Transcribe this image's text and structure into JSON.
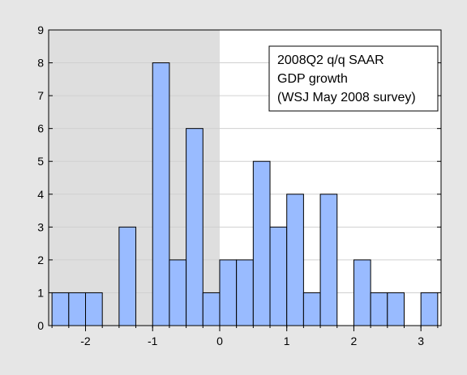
{
  "chart_data": {
    "type": "bar",
    "title": "",
    "xlabel": "",
    "ylabel": "",
    "xlim": [
      -2.55,
      3.3
    ],
    "ylim": [
      0,
      9
    ],
    "bin_width": 0.25,
    "shaded_region": [
      -2.55,
      0
    ],
    "x_ticks": [
      -2,
      -1,
      0,
      1,
      2,
      3
    ],
    "x_tick_labels": [
      "-2",
      "-1",
      "0",
      "1",
      "2",
      "3"
    ],
    "y_ticks": [
      0,
      1,
      2,
      3,
      4,
      5,
      6,
      7,
      8,
      9
    ],
    "y_tick_labels": [
      "0",
      "1",
      "2",
      "3",
      "4",
      "5",
      "6",
      "7",
      "8",
      "9"
    ],
    "bins": [
      {
        "x0": -2.5,
        "x1": -2.25,
        "count": 1
      },
      {
        "x0": -2.25,
        "x1": -2.0,
        "count": 1
      },
      {
        "x0": -2.0,
        "x1": -1.75,
        "count": 1
      },
      {
        "x0": -1.5,
        "x1": -1.25,
        "count": 3
      },
      {
        "x0": -1.0,
        "x1": -0.75,
        "count": 8
      },
      {
        "x0": -0.75,
        "x1": -0.5,
        "count": 2
      },
      {
        "x0": -0.5,
        "x1": -0.25,
        "count": 6
      },
      {
        "x0": -0.25,
        "x1": 0.0,
        "count": 1
      },
      {
        "x0": 0.0,
        "x1": 0.25,
        "count": 2
      },
      {
        "x0": 0.25,
        "x1": 0.5,
        "count": 2
      },
      {
        "x0": 0.5,
        "x1": 0.75,
        "count": 5
      },
      {
        "x0": 0.75,
        "x1": 1.0,
        "count": 3
      },
      {
        "x0": 1.0,
        "x1": 1.25,
        "count": 4
      },
      {
        "x0": 1.25,
        "x1": 1.5,
        "count": 1
      },
      {
        "x0": 1.5,
        "x1": 1.75,
        "count": 4
      },
      {
        "x0": 2.0,
        "x1": 2.25,
        "count": 2
      },
      {
        "x0": 2.25,
        "x1": 2.5,
        "count": 1
      },
      {
        "x0": 2.5,
        "x1": 2.75,
        "count": 1
      },
      {
        "x0": 3.0,
        "x1": 3.25,
        "count": 1
      }
    ],
    "legend": {
      "lines": [
        "2008Q2 q/q SAAR",
        "GDP growth",
        "(WSJ May 2008 survey)"
      ],
      "placement": "top-right"
    },
    "grid": true,
    "colors": {
      "bar_fill": "#99bbff",
      "bar_stroke": "#000000",
      "shade": "#dedede",
      "plot_bg": "#ffffff",
      "grid": "#d0d0d0",
      "outer_bg": "#e6e6e6"
    }
  }
}
